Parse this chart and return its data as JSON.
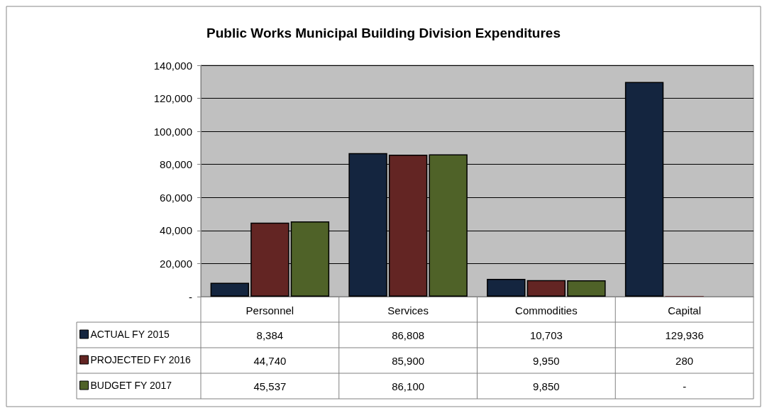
{
  "chart_data": {
    "type": "bar",
    "title": "Public Works Municipal Building Division Expenditures",
    "categories": [
      "Personnel",
      "Services",
      "Commodities",
      "Capital"
    ],
    "series": [
      {
        "name": "ACTUAL FY 2015",
        "color": "#14253f",
        "values": [
          8384,
          86808,
          10703,
          129936
        ],
        "value_labels": [
          "8,384",
          "86,808",
          "10,703",
          "129,936"
        ]
      },
      {
        "name": "PROJECTED FY 2016",
        "color": "#632523",
        "values": [
          44740,
          85900,
          9950,
          280
        ],
        "value_labels": [
          "44,740",
          "85,900",
          "9,950",
          "280"
        ]
      },
      {
        "name": "BUDGET FY 2017",
        "color": "#4f6228",
        "values": [
          45537,
          86100,
          9850,
          null
        ],
        "value_labels": [
          "45,537",
          "86,100",
          "9,850",
          "-"
        ]
      }
    ],
    "ylim": [
      0,
      140000
    ],
    "yticks": [
      {
        "value": 0,
        "label": "-"
      },
      {
        "value": 20000,
        "label": "20,000"
      },
      {
        "value": 40000,
        "label": "40,000"
      },
      {
        "value": 60000,
        "label": "60,000"
      },
      {
        "value": 80000,
        "label": "80,000"
      },
      {
        "value": 100000,
        "label": "100,000"
      },
      {
        "value": 120000,
        "label": "120,000"
      },
      {
        "value": 140000,
        "label": "140,000"
      }
    ],
    "grid": "y",
    "legend": "bottom left"
  }
}
